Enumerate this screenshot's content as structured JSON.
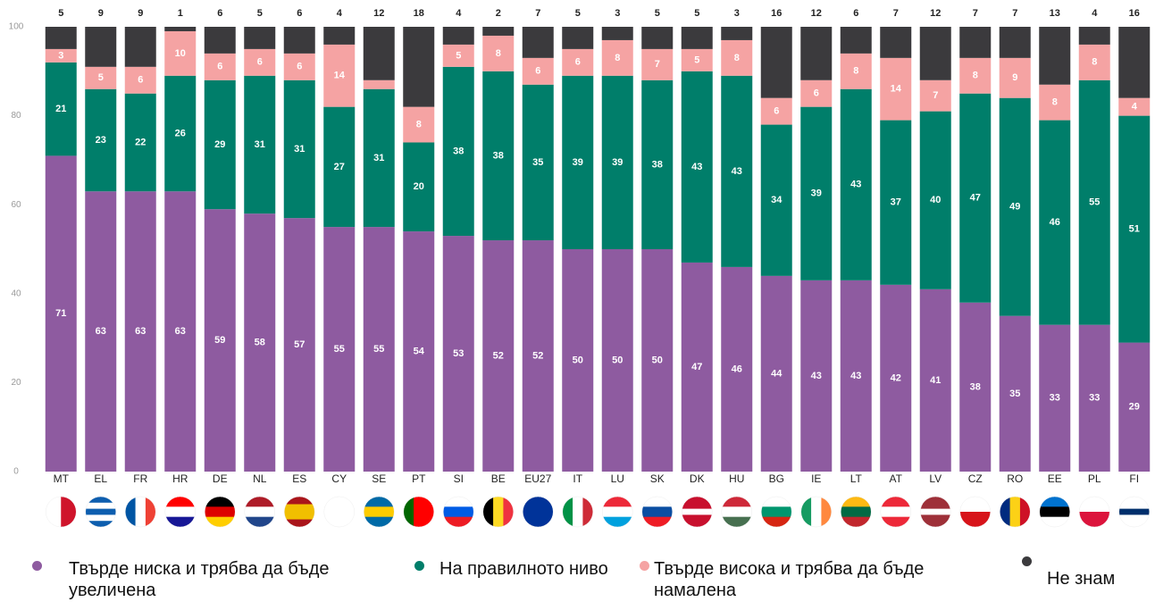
{
  "chart_data": {
    "type": "stacked_bar",
    "categories": [
      "MT",
      "EL",
      "FR",
      "HR",
      "DE",
      "NL",
      "ES",
      "CY",
      "SE",
      "PT",
      "SI",
      "BE",
      "EU27",
      "IT",
      "LU",
      "SK",
      "DK",
      "HU",
      "BG",
      "IE",
      "LT",
      "AT",
      "LV",
      "CZ",
      "RO",
      "EE",
      "PL",
      "FI"
    ],
    "series": [
      {
        "name": "Твърде ниска и трябва да бъде увеличена",
        "color": "#8e5ba0",
        "values": [
          71,
          63,
          63,
          63,
          59,
          58,
          57,
          55,
          55,
          54,
          53,
          52,
          52,
          50,
          50,
          50,
          47,
          46,
          44,
          43,
          43,
          42,
          41,
          38,
          35,
          33,
          33,
          29
        ]
      },
      {
        "name": "На правилното ниво",
        "color": "#007e6a",
        "values": [
          21,
          23,
          22,
          26,
          29,
          31,
          31,
          27,
          31,
          20,
          38,
          38,
          35,
          39,
          39,
          38,
          43,
          43,
          34,
          39,
          43,
          37,
          40,
          47,
          49,
          46,
          55,
          51
        ]
      },
      {
        "name": "Твърде висока и трябва да бъде намалена",
        "color": "#f5a3a3",
        "values": [
          3,
          5,
          6,
          10,
          6,
          6,
          6,
          14,
          2,
          8,
          5,
          8,
          6,
          6,
          8,
          7,
          5,
          8,
          6,
          6,
          8,
          14,
          7,
          8,
          9,
          8,
          8,
          4
        ],
        "value_labels": [
          "3",
          "5",
          "6",
          "10",
          "6",
          "6",
          "6",
          "14",
          null,
          "8",
          "5",
          "8",
          "6",
          "6",
          "8",
          "7",
          "5",
          "8",
          "6",
          "6",
          "8",
          "14",
          "7",
          "8",
          "9",
          "8",
          "8",
          "4"
        ]
      },
      {
        "name": "Не знам",
        "color": "#3b3a3d",
        "values": [
          5,
          9,
          9,
          1,
          6,
          5,
          6,
          4,
          12,
          18,
          4,
          2,
          7,
          5,
          3,
          5,
          5,
          3,
          16,
          12,
          6,
          7,
          12,
          7,
          7,
          13,
          4,
          16
        ]
      }
    ],
    "ylim": [
      0,
      100
    ],
    "yticks": [
      0,
      20,
      40,
      60,
      80,
      100
    ]
  }
}
